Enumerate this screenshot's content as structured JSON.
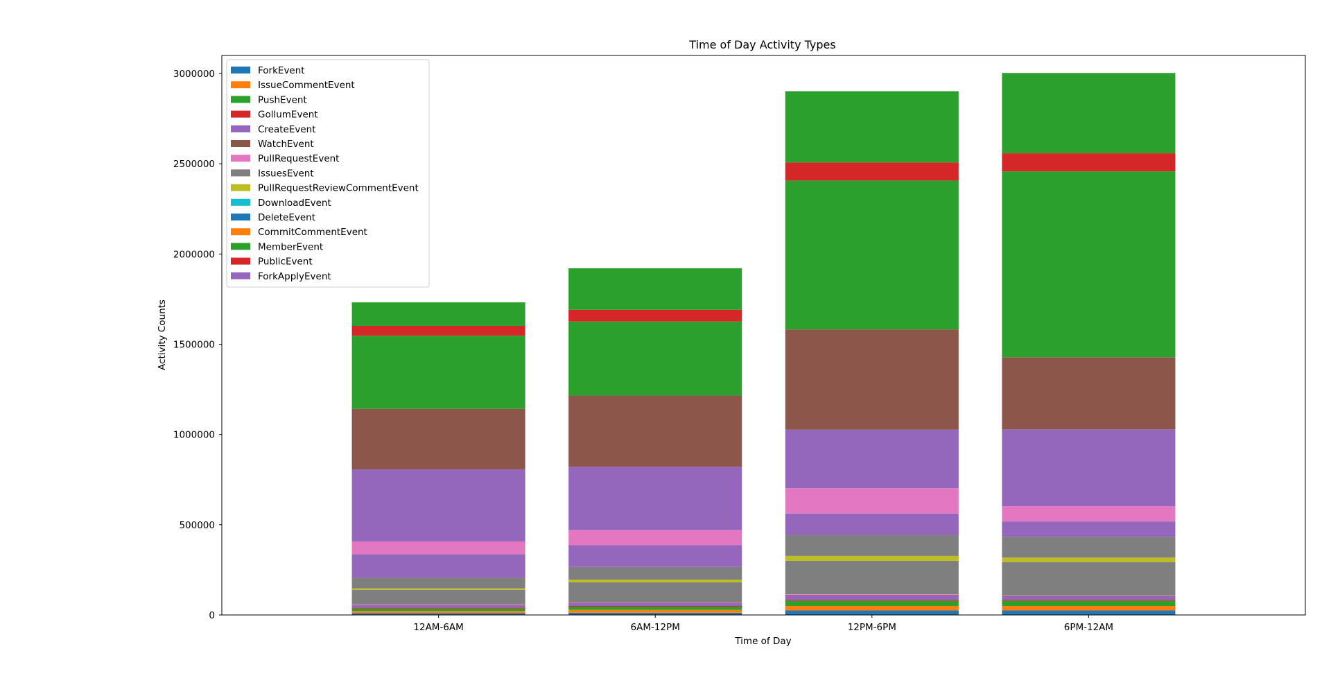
{
  "chart_data": {
    "type": "bar",
    "stacked": true,
    "title": "Time of Day Activity Types",
    "xlabel": "Time of Day",
    "ylabel": "Activity Counts",
    "ylim": [
      0,
      3100000
    ],
    "yticks": [
      0,
      500000,
      1000000,
      1500000,
      2000000,
      2500000,
      3000000
    ],
    "ytick_labels": [
      "0",
      "500000",
      "1000000",
      "1500000",
      "2000000",
      "2500000",
      "3000000"
    ],
    "grid": false,
    "legend_position": "upper-left",
    "categories": [
      "12AM-6AM",
      "6AM-12PM",
      "12PM-6PM",
      "6PM-12AM"
    ],
    "series": [
      {
        "name": "ForkEvent",
        "color": "#1f77b4",
        "values": [
          10000,
          12000,
          25000,
          25000
        ]
      },
      {
        "name": "IssueCommentEvent",
        "color": "#ff7f0e",
        "values": [
          12000,
          16000,
          25000,
          25000
        ]
      },
      {
        "name": "PushEvent",
        "color": "#2ca02c",
        "values": [
          14000,
          18000,
          28000,
          28000
        ]
      },
      {
        "name": "GollumEvent",
        "color": "#d62728",
        "values": [
          4000,
          4000,
          6000,
          6000
        ]
      },
      {
        "name": "CreateEvent",
        "color": "#9467bd",
        "values": [
          15000,
          15000,
          25000,
          18000
        ]
      },
      {
        "name": "WatchEvent",
        "color": "#8c564b",
        "values": [
          2000,
          3000,
          3000,
          3000
        ]
      },
      {
        "name": "PullRequestEvent",
        "color": "#e377c2",
        "values": [
          2000,
          3000,
          3000,
          3000
        ]
      },
      {
        "name": "IssuesEvent",
        "color": "#7f7f7f",
        "values": [
          80000,
          110000,
          185000,
          185000
        ]
      },
      {
        "name": "PullRequestReviewCommentEvent",
        "color": "#bcbd22",
        "values": [
          8000,
          15000,
          27000,
          25000
        ]
      },
      {
        "name": "DownloadEvent",
        "color": "#17becf",
        "values": [
          0,
          0,
          0,
          0
        ]
      },
      {
        "name": "DeleteEvent",
        "color": "#1f77b4",
        "values": [
          0,
          0,
          0,
          0
        ]
      },
      {
        "name": "CommitCommentEvent",
        "color": "#ff7f0e",
        "values": [
          0,
          0,
          0,
          0
        ]
      },
      {
        "name": "MemberEvent",
        "color": "#2ca02c",
        "values": [
          0,
          0,
          0,
          0
        ]
      },
      {
        "name": "PublicEvent",
        "color": "#d62728",
        "values": [
          0,
          0,
          0,
          0
        ]
      },
      {
        "name": "ForkApplyEvent",
        "color": "#9467bd",
        "values": [
          0,
          0,
          0,
          0
        ]
      },
      {
        "name": "",
        "color": "#7f7f7f",
        "values": [
          60000,
          70000,
          115000,
          115000
        ]
      },
      {
        "name": "",
        "color": "#9467bd",
        "values": [
          130000,
          120000,
          120000,
          85000
        ]
      },
      {
        "name": "",
        "color": "#e377c2",
        "values": [
          70000,
          85000,
          140000,
          85000
        ]
      },
      {
        "name": "",
        "color": "#9467bd",
        "values": [
          400000,
          350000,
          325000,
          425000
        ]
      },
      {
        "name": "",
        "color": "#8c564b",
        "values": [
          335000,
          395000,
          555000,
          400000
        ]
      },
      {
        "name": "",
        "color": "#2ca02c",
        "values": [
          405000,
          410000,
          825000,
          1030000
        ]
      },
      {
        "name": "",
        "color": "#d62728",
        "values": [
          55000,
          65000,
          100000,
          100000
        ]
      },
      {
        "name": "",
        "color": "#2ca02c",
        "values": [
          130000,
          230000,
          395000,
          445000
        ]
      }
    ]
  }
}
